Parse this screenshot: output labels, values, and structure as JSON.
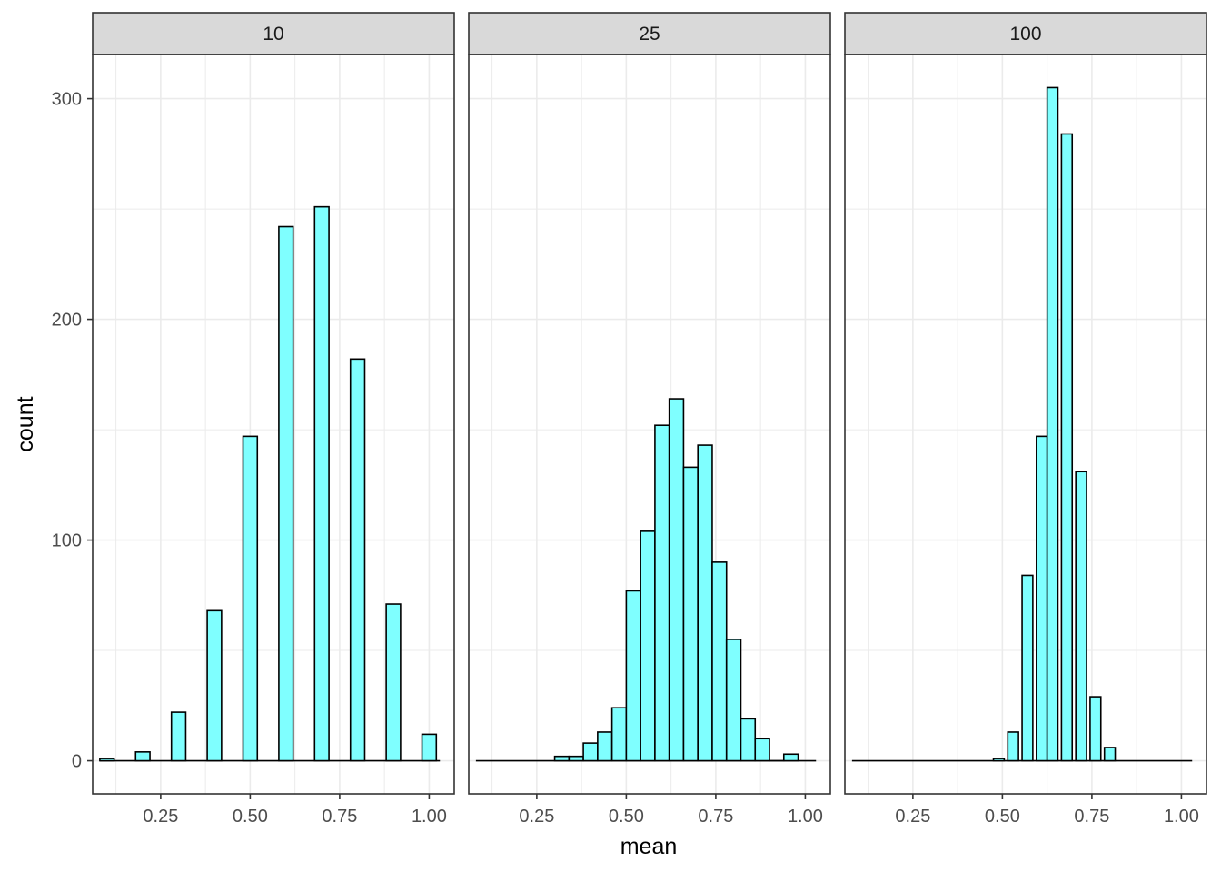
{
  "chart_data": {
    "type": "bar",
    "layout": "facet-horizontal",
    "xlabel": "mean",
    "ylabel": "count",
    "ylim": [
      -15,
      320
    ],
    "xlim": [
      0.06,
      1.07
    ],
    "x_ticks": [
      0.25,
      0.5,
      0.75,
      1.0
    ],
    "x_tick_labels": [
      "0.25",
      "0.50",
      "0.75",
      "1.00"
    ],
    "y_ticks": [
      0,
      100,
      200,
      300
    ],
    "y_tick_labels": [
      "0",
      "100",
      "200",
      "300"
    ],
    "grid": true,
    "colors": {
      "fill": "#7FFFFF",
      "outline": "#000000",
      "strip_bg": "#D9D9D9",
      "grid": "#EBEBEB"
    },
    "panels": [
      {
        "label": "10",
        "bars": [
          {
            "x": 0.1,
            "count": 1
          },
          {
            "x": 0.2,
            "count": 4
          },
          {
            "x": 0.3,
            "count": 22
          },
          {
            "x": 0.4,
            "count": 68
          },
          {
            "x": 0.5,
            "count": 147
          },
          {
            "x": 0.6,
            "count": 242
          },
          {
            "x": 0.7,
            "count": 251
          },
          {
            "x": 0.8,
            "count": 182
          },
          {
            "x": 0.9,
            "count": 71
          },
          {
            "x": 1.0,
            "count": 12
          }
        ]
      },
      {
        "label": "25",
        "bars": [
          {
            "x": 0.32,
            "count": 2
          },
          {
            "x": 0.36,
            "count": 2
          },
          {
            "x": 0.4,
            "count": 8
          },
          {
            "x": 0.44,
            "count": 13
          },
          {
            "x": 0.48,
            "count": 24
          },
          {
            "x": 0.52,
            "count": 77
          },
          {
            "x": 0.56,
            "count": 104
          },
          {
            "x": 0.6,
            "count": 152
          },
          {
            "x": 0.64,
            "count": 164
          },
          {
            "x": 0.68,
            "count": 133
          },
          {
            "x": 0.72,
            "count": 143
          },
          {
            "x": 0.76,
            "count": 90
          },
          {
            "x": 0.8,
            "count": 55
          },
          {
            "x": 0.84,
            "count": 19
          },
          {
            "x": 0.88,
            "count": 10
          },
          {
            "x": 0.92,
            "count": 0
          },
          {
            "x": 0.96,
            "count": 3
          }
        ]
      },
      {
        "label": "100",
        "bars": [
          {
            "x": 0.49,
            "count": 1
          },
          {
            "x": 0.53,
            "count": 13
          },
          {
            "x": 0.57,
            "count": 84
          },
          {
            "x": 0.61,
            "count": 147
          },
          {
            "x": 0.64,
            "count": 305
          },
          {
            "x": 0.68,
            "count": 284
          },
          {
            "x": 0.72,
            "count": 131
          },
          {
            "x": 0.76,
            "count": 29
          },
          {
            "x": 0.8,
            "count": 6
          }
        ]
      }
    ]
  }
}
